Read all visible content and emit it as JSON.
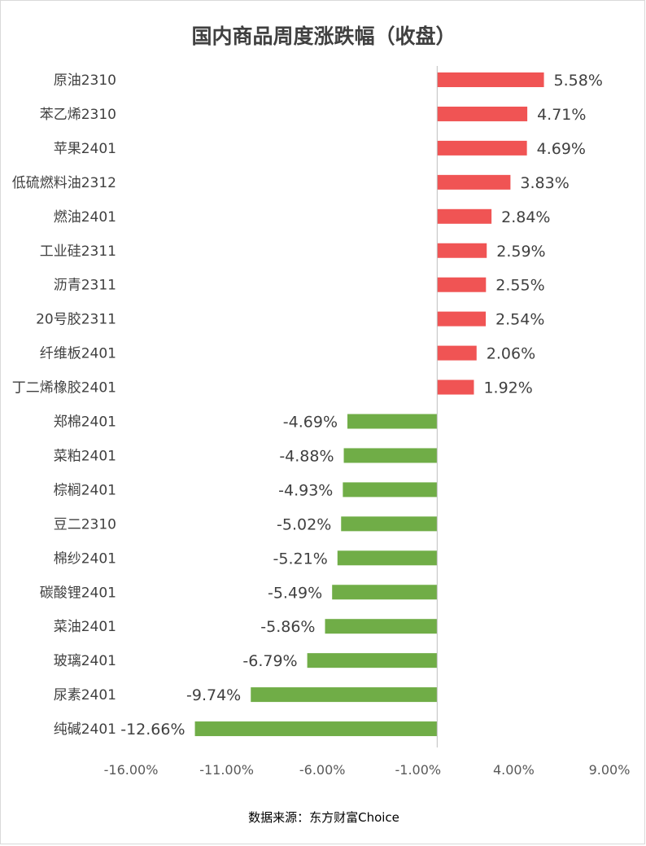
{
  "chart_data": {
    "type": "bar",
    "orientation": "horizontal",
    "title": "国内商品周度涨跌幅（收盘）",
    "categories": [
      "原油2310",
      "苯乙烯2310",
      "苹果2401",
      "低硫燃料油2312",
      "燃油2401",
      "工业硅2311",
      "沥青2311",
      "20号胶2311",
      "纤维板2401",
      "丁二烯橡胶2401",
      "郑棉2401",
      "菜粕2401",
      "棕榈2401",
      "豆二2310",
      "棉纱2401",
      "碳酸锂2401",
      "菜油2401",
      "玻璃2401",
      "尿素2401",
      "纯碱2401"
    ],
    "values": [
      5.58,
      4.71,
      4.69,
      3.83,
      2.84,
      2.59,
      2.55,
      2.54,
      2.06,
      1.92,
      -4.69,
      -4.88,
      -4.93,
      -5.02,
      -5.21,
      -5.49,
      -5.86,
      -6.79,
      -9.74,
      -12.66
    ],
    "data_labels": [
      "5.58%",
      "4.71%",
      "4.69%",
      "3.83%",
      "2.84%",
      "2.59%",
      "2.55%",
      "2.54%",
      "2.06%",
      "1.92%",
      "-4.69%",
      "-4.88%",
      "-4.93%",
      "-5.02%",
      "-5.21%",
      "-5.49%",
      "-5.86%",
      "-6.79%",
      "-9.74%",
      "-12.66%"
    ],
    "xlim": [
      -16,
      9
    ],
    "x_ticks": [
      -16,
      -11,
      -6,
      -1,
      4,
      9
    ],
    "x_tick_labels": [
      "-16.00%",
      "-11.00%",
      "-6.00%",
      "-1.00%",
      "4.00%",
      "9.00%"
    ],
    "colors": {
      "positive": "#f05454",
      "negative": "#70ad47",
      "axis": "#bfbfbf"
    },
    "grid": false,
    "legend": "none",
    "source": "数据来源：东方财富Choice"
  }
}
